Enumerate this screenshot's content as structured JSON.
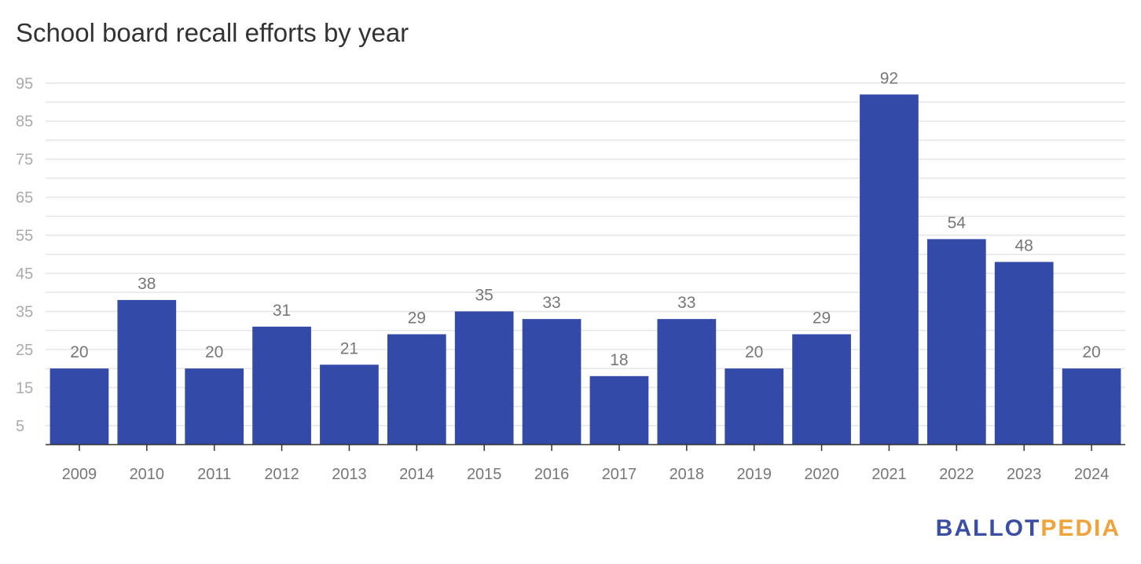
{
  "chart_data": {
    "type": "bar",
    "title": "School board recall efforts by year",
    "categories": [
      "2009",
      "2010",
      "2011",
      "2012",
      "2013",
      "2014",
      "2015",
      "2016",
      "2017",
      "2018",
      "2019",
      "2020",
      "2021",
      "2022",
      "2023",
      "2024"
    ],
    "values": [
      20,
      38,
      20,
      31,
      21,
      29,
      35,
      33,
      18,
      33,
      20,
      29,
      92,
      54,
      48,
      20
    ],
    "ylim": [
      0,
      97
    ],
    "yticks": [
      5,
      15,
      25,
      35,
      45,
      55,
      65,
      75,
      85,
      95
    ],
    "grid": true,
    "bar_color": "#344aa8",
    "data_labels": true
  },
  "branding": {
    "logo_part1": "BALLOT",
    "logo_part2": "PEDIA",
    "logo_color1": "#3a4ea6",
    "logo_color2": "#f0a33b"
  }
}
